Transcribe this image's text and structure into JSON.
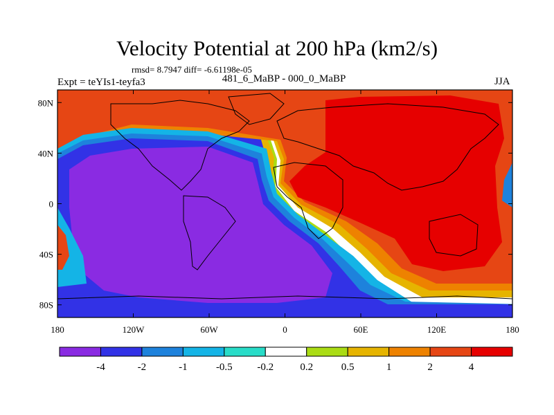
{
  "chart_data": {
    "type": "heatmap",
    "title": "Velocity Potential at 200 hPa (km2/s)",
    "stats": "rmsd= 8.7947 diff= -6.61198e-05",
    "left_label": "Expt = teYIs1-teyfa3",
    "center_label": "481_6_MaBP - 000_0_MaBP",
    "right_label": "JJA",
    "x_ticks": [
      "180",
      "120W",
      "60W",
      "0",
      "60E",
      "120E",
      "180"
    ],
    "x_tick_lon": [
      -180,
      -120,
      -60,
      0,
      60,
      120,
      180
    ],
    "y_ticks": [
      "80N",
      "40N",
      "0",
      "40S",
      "80S"
    ],
    "y_tick_lat": [
      80,
      40,
      0,
      -40,
      -80
    ],
    "xlim": [
      -180,
      180
    ],
    "ylim": [
      -90,
      90
    ],
    "contour_levels": [
      -4,
      -2,
      -1,
      -0.5,
      -0.2,
      0.2,
      0.5,
      1,
      2,
      4
    ],
    "colorbar_labels": [
      "-4",
      "-2",
      "-1",
      "-0.5",
      "-0.2",
      "0.2",
      "0.5",
      "1",
      "2",
      "4"
    ],
    "colorbar_colors": [
      "#8a2be2",
      "#3232e6",
      "#1e82dc",
      "#14b4e6",
      "#28dcc8",
      "#ffffff",
      "#aadc14",
      "#e6b400",
      "#ee8200",
      "#e64614",
      "#e60000"
    ],
    "regions": [
      {
        "name": "negative-pacific-atlantic-lobe",
        "value_range": "< -4",
        "description": "broad minimum over Americas, Pacific and Atlantic"
      },
      {
        "name": "positive-eurasia-indian-lobe",
        "value_range": "> 4",
        "description": "broad maximum over Eurasia, Africa, Indian Ocean and Australia"
      }
    ]
  }
}
